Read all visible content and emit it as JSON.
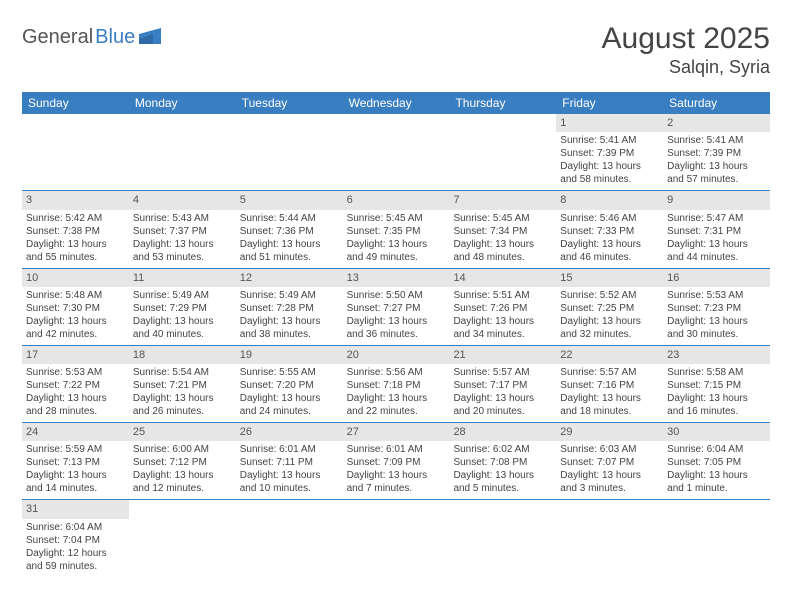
{
  "brand": {
    "part1": "General",
    "part2": "Blue",
    "accent_color": "#3a7ec2",
    "text_color": "#555555"
  },
  "title": {
    "month_year": "August 2025",
    "location": "Salqin, Syria"
  },
  "colors": {
    "header_bg": "#3a7ec2",
    "daynum_bg": "#e6e6e6",
    "row_border": "#3a7ec2",
    "text": "#444444"
  },
  "day_names": [
    "Sunday",
    "Monday",
    "Tuesday",
    "Wednesday",
    "Thursday",
    "Friday",
    "Saturday"
  ],
  "weeks": [
    [
      {
        "n": "",
        "sr": "",
        "ss": "",
        "dl": ""
      },
      {
        "n": "",
        "sr": "",
        "ss": "",
        "dl": ""
      },
      {
        "n": "",
        "sr": "",
        "ss": "",
        "dl": ""
      },
      {
        "n": "",
        "sr": "",
        "ss": "",
        "dl": ""
      },
      {
        "n": "",
        "sr": "",
        "ss": "",
        "dl": ""
      },
      {
        "n": "1",
        "sr": "Sunrise: 5:41 AM",
        "ss": "Sunset: 7:39 PM",
        "dl": "Daylight: 13 hours and 58 minutes."
      },
      {
        "n": "2",
        "sr": "Sunrise: 5:41 AM",
        "ss": "Sunset: 7:39 PM",
        "dl": "Daylight: 13 hours and 57 minutes."
      }
    ],
    [
      {
        "n": "3",
        "sr": "Sunrise: 5:42 AM",
        "ss": "Sunset: 7:38 PM",
        "dl": "Daylight: 13 hours and 55 minutes."
      },
      {
        "n": "4",
        "sr": "Sunrise: 5:43 AM",
        "ss": "Sunset: 7:37 PM",
        "dl": "Daylight: 13 hours and 53 minutes."
      },
      {
        "n": "5",
        "sr": "Sunrise: 5:44 AM",
        "ss": "Sunset: 7:36 PM",
        "dl": "Daylight: 13 hours and 51 minutes."
      },
      {
        "n": "6",
        "sr": "Sunrise: 5:45 AM",
        "ss": "Sunset: 7:35 PM",
        "dl": "Daylight: 13 hours and 49 minutes."
      },
      {
        "n": "7",
        "sr": "Sunrise: 5:45 AM",
        "ss": "Sunset: 7:34 PM",
        "dl": "Daylight: 13 hours and 48 minutes."
      },
      {
        "n": "8",
        "sr": "Sunrise: 5:46 AM",
        "ss": "Sunset: 7:33 PM",
        "dl": "Daylight: 13 hours and 46 minutes."
      },
      {
        "n": "9",
        "sr": "Sunrise: 5:47 AM",
        "ss": "Sunset: 7:31 PM",
        "dl": "Daylight: 13 hours and 44 minutes."
      }
    ],
    [
      {
        "n": "10",
        "sr": "Sunrise: 5:48 AM",
        "ss": "Sunset: 7:30 PM",
        "dl": "Daylight: 13 hours and 42 minutes."
      },
      {
        "n": "11",
        "sr": "Sunrise: 5:49 AM",
        "ss": "Sunset: 7:29 PM",
        "dl": "Daylight: 13 hours and 40 minutes."
      },
      {
        "n": "12",
        "sr": "Sunrise: 5:49 AM",
        "ss": "Sunset: 7:28 PM",
        "dl": "Daylight: 13 hours and 38 minutes."
      },
      {
        "n": "13",
        "sr": "Sunrise: 5:50 AM",
        "ss": "Sunset: 7:27 PM",
        "dl": "Daylight: 13 hours and 36 minutes."
      },
      {
        "n": "14",
        "sr": "Sunrise: 5:51 AM",
        "ss": "Sunset: 7:26 PM",
        "dl": "Daylight: 13 hours and 34 minutes."
      },
      {
        "n": "15",
        "sr": "Sunrise: 5:52 AM",
        "ss": "Sunset: 7:25 PM",
        "dl": "Daylight: 13 hours and 32 minutes."
      },
      {
        "n": "16",
        "sr": "Sunrise: 5:53 AM",
        "ss": "Sunset: 7:23 PM",
        "dl": "Daylight: 13 hours and 30 minutes."
      }
    ],
    [
      {
        "n": "17",
        "sr": "Sunrise: 5:53 AM",
        "ss": "Sunset: 7:22 PM",
        "dl": "Daylight: 13 hours and 28 minutes."
      },
      {
        "n": "18",
        "sr": "Sunrise: 5:54 AM",
        "ss": "Sunset: 7:21 PM",
        "dl": "Daylight: 13 hours and 26 minutes."
      },
      {
        "n": "19",
        "sr": "Sunrise: 5:55 AM",
        "ss": "Sunset: 7:20 PM",
        "dl": "Daylight: 13 hours and 24 minutes."
      },
      {
        "n": "20",
        "sr": "Sunrise: 5:56 AM",
        "ss": "Sunset: 7:18 PM",
        "dl": "Daylight: 13 hours and 22 minutes."
      },
      {
        "n": "21",
        "sr": "Sunrise: 5:57 AM",
        "ss": "Sunset: 7:17 PM",
        "dl": "Daylight: 13 hours and 20 minutes."
      },
      {
        "n": "22",
        "sr": "Sunrise: 5:57 AM",
        "ss": "Sunset: 7:16 PM",
        "dl": "Daylight: 13 hours and 18 minutes."
      },
      {
        "n": "23",
        "sr": "Sunrise: 5:58 AM",
        "ss": "Sunset: 7:15 PM",
        "dl": "Daylight: 13 hours and 16 minutes."
      }
    ],
    [
      {
        "n": "24",
        "sr": "Sunrise: 5:59 AM",
        "ss": "Sunset: 7:13 PM",
        "dl": "Daylight: 13 hours and 14 minutes."
      },
      {
        "n": "25",
        "sr": "Sunrise: 6:00 AM",
        "ss": "Sunset: 7:12 PM",
        "dl": "Daylight: 13 hours and 12 minutes."
      },
      {
        "n": "26",
        "sr": "Sunrise: 6:01 AM",
        "ss": "Sunset: 7:11 PM",
        "dl": "Daylight: 13 hours and 10 minutes."
      },
      {
        "n": "27",
        "sr": "Sunrise: 6:01 AM",
        "ss": "Sunset: 7:09 PM",
        "dl": "Daylight: 13 hours and 7 minutes."
      },
      {
        "n": "28",
        "sr": "Sunrise: 6:02 AM",
        "ss": "Sunset: 7:08 PM",
        "dl": "Daylight: 13 hours and 5 minutes."
      },
      {
        "n": "29",
        "sr": "Sunrise: 6:03 AM",
        "ss": "Sunset: 7:07 PM",
        "dl": "Daylight: 13 hours and 3 minutes."
      },
      {
        "n": "30",
        "sr": "Sunrise: 6:04 AM",
        "ss": "Sunset: 7:05 PM",
        "dl": "Daylight: 13 hours and 1 minute."
      }
    ],
    [
      {
        "n": "31",
        "sr": "Sunrise: 6:04 AM",
        "ss": "Sunset: 7:04 PM",
        "dl": "Daylight: 12 hours and 59 minutes."
      },
      {
        "n": "",
        "sr": "",
        "ss": "",
        "dl": ""
      },
      {
        "n": "",
        "sr": "",
        "ss": "",
        "dl": ""
      },
      {
        "n": "",
        "sr": "",
        "ss": "",
        "dl": ""
      },
      {
        "n": "",
        "sr": "",
        "ss": "",
        "dl": ""
      },
      {
        "n": "",
        "sr": "",
        "ss": "",
        "dl": ""
      },
      {
        "n": "",
        "sr": "",
        "ss": "",
        "dl": ""
      }
    ]
  ]
}
